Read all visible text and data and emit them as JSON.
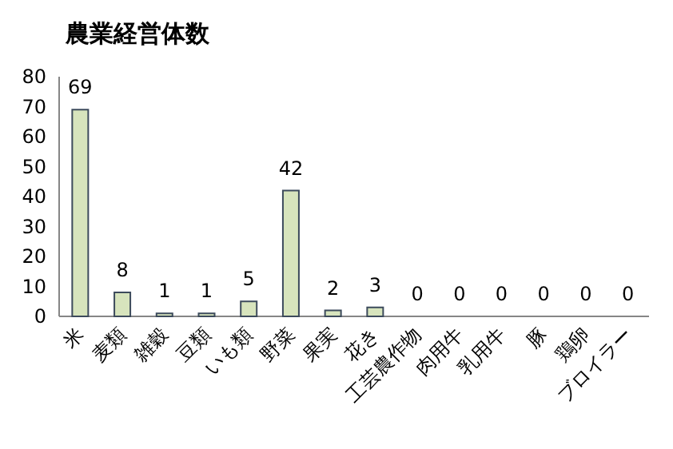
{
  "chart_data": {
    "type": "bar",
    "title": "農業経営体数",
    "categories": [
      "米",
      "麦類",
      "雑穀",
      "豆類",
      "いも類",
      "野菜",
      "果実",
      "花き",
      "工芸農作物",
      "肉用牛",
      "乳用牛",
      "豚",
      "鶏卵",
      "ブロイラー"
    ],
    "values": [
      69,
      8,
      1,
      1,
      5,
      42,
      2,
      3,
      0,
      0,
      0,
      0,
      0,
      0
    ],
    "color": "#d7e4bd",
    "ylim": [
      0,
      80
    ],
    "yticks": [
      0,
      10,
      20,
      30,
      40,
      50,
      60,
      70,
      80
    ],
    "data_labels": true,
    "grid": false
  }
}
